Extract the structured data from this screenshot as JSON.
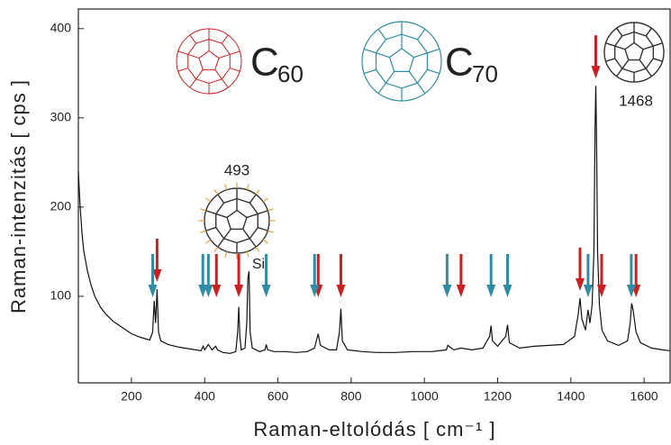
{
  "chart_data": {
    "type": "line",
    "x_label": "Raman-eltolódás [ cm⁻¹ ]",
    "y_label": "Raman-intenzitás [ cps ]",
    "xlim": [
      55,
      1671
    ],
    "ylim": [
      3,
      422
    ],
    "xticks": [
      200,
      400,
      600,
      800,
      1000,
      1200,
      1400,
      1600
    ],
    "yticks": [
      100,
      200,
      300,
      400
    ],
    "color": "#111111",
    "x": [
      55,
      60,
      65,
      70,
      80,
      90,
      100,
      115,
      130,
      150,
      175,
      200,
      225,
      250,
      258,
      262,
      266,
      270,
      274,
      280,
      300,
      330,
      360,
      390,
      396,
      400,
      410,
      420,
      430,
      435,
      450,
      470,
      485,
      490,
      493,
      496,
      500,
      510,
      515,
      518,
      521,
      524,
      530,
      550,
      565,
      568,
      572,
      590,
      620,
      650,
      680,
      700,
      706,
      710,
      716,
      740,
      760,
      768,
      772,
      776,
      790,
      830,
      870,
      920,
      970,
      1020,
      1060,
      1064,
      1080,
      1100,
      1130,
      1160,
      1178,
      1182,
      1186,
      1200,
      1222,
      1227,
      1232,
      1260,
      1300,
      1340,
      1380,
      1410,
      1420,
      1425,
      1430,
      1440,
      1447,
      1452,
      1458,
      1463,
      1466,
      1468,
      1470,
      1473,
      1478,
      1485,
      1500,
      1530,
      1555,
      1562,
      1566,
      1570,
      1578,
      1590,
      1620,
      1650,
      1670
    ],
    "values": [
      240,
      200,
      170,
      150,
      128,
      112,
      100,
      88,
      80,
      72,
      65,
      58,
      54,
      51,
      60,
      95,
      70,
      108,
      60,
      50,
      46,
      43,
      41,
      39,
      44,
      40,
      46,
      40,
      44,
      40,
      37,
      36,
      38,
      60,
      88,
      55,
      40,
      42,
      70,
      120,
      128,
      60,
      42,
      38,
      40,
      46,
      40,
      38,
      38,
      37,
      38,
      42,
      52,
      58,
      45,
      40,
      40,
      60,
      86,
      50,
      40,
      38,
      37,
      37,
      38,
      38,
      40,
      45,
      40,
      42,
      40,
      42,
      55,
      67,
      50,
      44,
      55,
      68,
      48,
      42,
      44,
      45,
      46,
      55,
      80,
      98,
      75,
      62,
      85,
      70,
      90,
      150,
      290,
      336,
      280,
      150,
      90,
      62,
      50,
      45,
      50,
      70,
      92,
      85,
      60,
      48,
      42,
      40,
      39
    ],
    "mode_markers": [
      {
        "label": "C",
        "label_sub": "60",
        "color": "#cc1f1f",
        "x": [
          270,
          432,
          493,
          710,
          772,
          1100,
          1425,
          1468,
          1484,
          1578
        ]
      },
      {
        "label": "C",
        "label_sub": "70",
        "color": "#2f8ca3",
        "x": [
          258,
          395,
          410,
          568,
          700,
          1062,
          1182,
          1227,
          1447,
          1565
        ]
      }
    ],
    "annotations": [
      "493",
      "Si",
      "1468"
    ]
  }
}
